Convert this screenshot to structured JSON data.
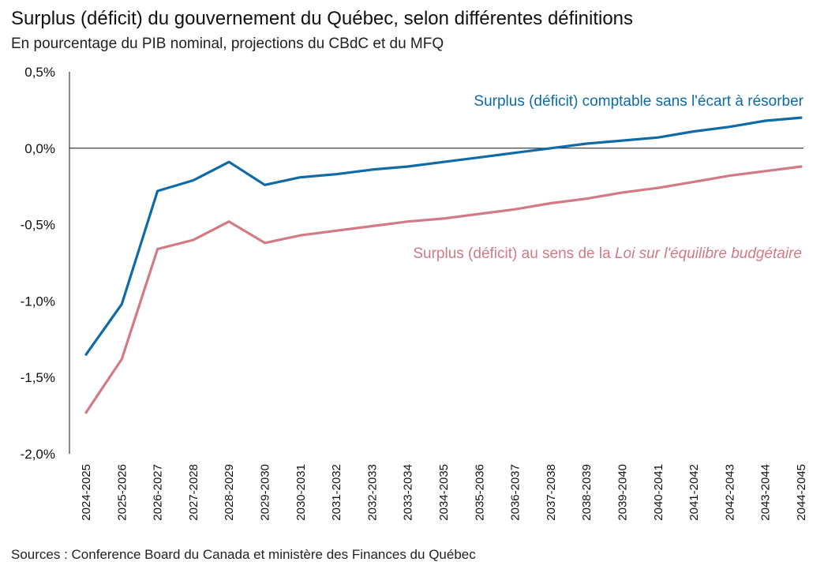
{
  "header": {
    "title": "Surplus (déficit) du gouvernement du Québec, selon différentes définitions",
    "subtitle": "En pourcentage du PIB nominal, projections du CBdC et du MFQ"
  },
  "footer": {
    "source": "Sources : Conference Board du Canada et ministère des Finances du Québec"
  },
  "chart_data": {
    "type": "line",
    "title": "Surplus (déficit) du gouvernement du Québec, selon différentes définitions",
    "subtitle": "En pourcentage du PIB nominal, projections du CBdC et du MFQ",
    "xlabel": "",
    "ylabel": "",
    "ylim": [
      -2.0,
      0.5
    ],
    "y_ticks": [
      0.5,
      0.0,
      -0.5,
      -1.0,
      -1.5,
      -2.0
    ],
    "y_tick_labels": [
      "0,5%",
      "0,0%",
      "-0,5%",
      "-1,0%",
      "-1,5%",
      "-2,0%"
    ],
    "grid": false,
    "legend": "inline labels",
    "categories": [
      "2024-2025",
      "2025-2026",
      "2026-2027",
      "2027-2028",
      "2028-2029",
      "2029-2030",
      "2030-2031",
      "2031-2032",
      "2032-2033",
      "2033-2034",
      "2034-2035",
      "2035-2036",
      "2036-2037",
      "2037-2038",
      "2038-2039",
      "2039-2040",
      "2040-2041",
      "2041-2042",
      "2042-2043",
      "2043-2044",
      "2044-2045"
    ],
    "series": [
      {
        "name": "Surplus (déficit) comptable sans l'écart à résorber",
        "color": "#0e6ba8",
        "values": [
          -1.35,
          -1.02,
          -0.28,
          -0.21,
          -0.09,
          -0.24,
          -0.19,
          -0.17,
          -0.14,
          -0.12,
          -0.09,
          -0.06,
          -0.03,
          0.0,
          0.03,
          0.05,
          0.07,
          0.11,
          0.14,
          0.18,
          0.2
        ]
      },
      {
        "name_parts": [
          "Surplus (déficit) au sens de la ",
          "Loi sur l'équilibre budgétaire"
        ],
        "color": "#d27a86",
        "values": [
          -1.73,
          -1.38,
          -0.66,
          -0.6,
          -0.48,
          -0.62,
          -0.57,
          -0.54,
          -0.51,
          -0.48,
          -0.46,
          -0.43,
          -0.4,
          -0.36,
          -0.33,
          -0.29,
          -0.26,
          -0.22,
          -0.18,
          -0.15,
          -0.12
        ]
      }
    ]
  }
}
